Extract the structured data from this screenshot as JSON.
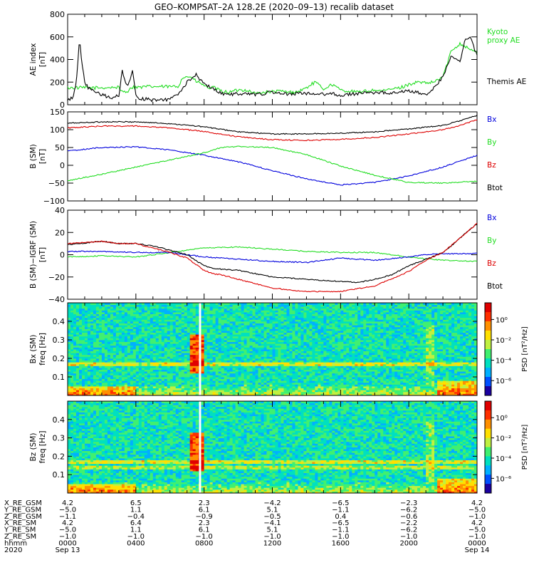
{
  "title": "GEO–KOMPSAT–2A 128.2E (2020–09–13) recalib dataset",
  "colors": {
    "black": "#000000",
    "green": "#22dd22",
    "blue": "#0000dd",
    "red": "#dd0000"
  },
  "chart_data": [
    {
      "type": "line",
      "ylabel_line1": "AE index",
      "ylabel_line2": "[nT]",
      "ylim": [
        0,
        800
      ],
      "yticks": [
        "0",
        "200",
        "400",
        "600",
        "800"
      ],
      "legend": [
        {
          "name": "Kyoto\nproxy AE",
          "color": "green"
        },
        {
          "name": "Themis AE",
          "color": "black"
        }
      ],
      "series": [
        {
          "name": "Kyoto proxy AE",
          "color": "green",
          "x": [
            0,
            1,
            2,
            3,
            3.01,
            3.6,
            3.61,
            4.5,
            4.51,
            6.5,
            6.7,
            7.2,
            7.5,
            7.9,
            8.2,
            8.6,
            9,
            9.5,
            10,
            10.5,
            11,
            11.5,
            12,
            12.5,
            13,
            13.5,
            14,
            14.5,
            15,
            15.5,
            16,
            16.5,
            17,
            17.5,
            18,
            18.5,
            19,
            19.5,
            20,
            20.5,
            21,
            21.5,
            22,
            22.5,
            23,
            23.5,
            24
          ],
          "values": [
            150,
            150,
            150,
            155,
            120,
            120,
            155,
            155,
            160,
            160,
            240,
            250,
            210,
            180,
            150,
            150,
            120,
            110,
            130,
            130,
            100,
            110,
            115,
            120,
            110,
            115,
            150,
            200,
            140,
            180,
            130,
            120,
            110,
            120,
            130,
            120,
            140,
            150,
            180,
            200,
            190,
            200,
            250,
            480,
            540,
            500,
            460
          ]
        },
        {
          "name": "Themis AE",
          "color": "black",
          "x": [
            0,
            0.3,
            0.5,
            0.7,
            0.8,
            0.9,
            1,
            1.2,
            1.5,
            2,
            2.5,
            3,
            3.2,
            3.5,
            3.8,
            4,
            4.3,
            4.6,
            5,
            5.5,
            6,
            6.5,
            7,
            7.5,
            8,
            8.5,
            9,
            9.5,
            10,
            10.5,
            11,
            11.5,
            12,
            12.5,
            13,
            13.5,
            14,
            14.5,
            15,
            15.5,
            16,
            16.5,
            17,
            17.5,
            18,
            18.5,
            19,
            19.5,
            20,
            20.5,
            21,
            21.5,
            22,
            22.5,
            23,
            23.3,
            23.6,
            24
          ],
          "values": [
            40,
            60,
            200,
            580,
            400,
            300,
            200,
            150,
            120,
            90,
            60,
            80,
            300,
            150,
            300,
            80,
            50,
            50,
            40,
            40,
            50,
            90,
            200,
            270,
            180,
            150,
            100,
            90,
            100,
            95,
            90,
            100,
            110,
            95,
            95,
            100,
            100,
            90,
            95,
            100,
            80,
            90,
            100,
            110,
            100,
            110,
            100,
            120,
            120,
            110,
            90,
            150,
            250,
            430,
            380,
            580,
            600,
            430
          ]
        }
      ]
    },
    {
      "type": "line",
      "ylabel_line1": "B (SM)",
      "ylabel_line2": "[nT]",
      "ylim": [
        -100,
        150
      ],
      "yticks": [
        "−100",
        "−50",
        "0",
        "50",
        "100",
        "150"
      ],
      "legend": [
        {
          "name": "Bx",
          "color": "blue"
        },
        {
          "name": "By",
          "color": "green"
        },
        {
          "name": "Bz",
          "color": "red"
        },
        {
          "name": "Btot",
          "color": "black"
        }
      ],
      "series": [
        {
          "name": "Btot",
          "color": "black",
          "x": [
            0,
            2,
            4,
            6,
            8,
            10,
            12,
            14,
            16,
            18,
            20,
            22,
            23,
            24
          ],
          "values": [
            118,
            122,
            122,
            117,
            108,
            94,
            88,
            88,
            90,
            94,
            102,
            112,
            125,
            140
          ]
        },
        {
          "name": "Bz",
          "color": "red",
          "x": [
            0,
            2,
            4,
            6,
            8,
            10,
            12,
            14,
            16,
            18,
            20,
            22,
            23,
            24
          ],
          "values": [
            105,
            110,
            110,
            105,
            95,
            80,
            72,
            70,
            73,
            78,
            88,
            100,
            112,
            128
          ]
        },
        {
          "name": "Bx",
          "color": "blue",
          "x": [
            0,
            2,
            4,
            6,
            8,
            10,
            12,
            14,
            16,
            18,
            20,
            22,
            24
          ],
          "values": [
            40,
            50,
            52,
            43,
            28,
            10,
            -15,
            -38,
            -55,
            -48,
            -30,
            -5,
            28
          ]
        },
        {
          "name": "By",
          "color": "green",
          "x": [
            0,
            2,
            4,
            6,
            8,
            9,
            10,
            12,
            14,
            16,
            18,
            20,
            22,
            24
          ],
          "values": [
            -43,
            -25,
            -5,
            15,
            35,
            50,
            53,
            50,
            30,
            -2,
            -28,
            -48,
            -50,
            -45
          ]
        }
      ]
    },
    {
      "type": "line",
      "ylabel_line1": "B (SM)−IGRF (SM)",
      "ylabel_line2": "[nT]",
      "ylim": [
        -40,
        40
      ],
      "yticks": [
        "−40",
        "−20",
        "0",
        "20",
        "40"
      ],
      "legend": [
        {
          "name": "Bx",
          "color": "blue"
        },
        {
          "name": "By",
          "color": "green"
        },
        {
          "name": "Bz",
          "color": "red"
        },
        {
          "name": "Btot",
          "color": "black"
        }
      ],
      "series": [
        {
          "name": "By",
          "color": "green",
          "x": [
            0,
            2,
            4,
            6,
            8,
            10,
            12,
            14,
            16,
            18,
            20,
            22,
            24
          ],
          "values": [
            -2,
            -1,
            -2,
            2,
            6,
            7,
            5,
            3,
            2,
            2,
            -2,
            -5,
            -6
          ]
        },
        {
          "name": "Bx",
          "color": "blue",
          "x": [
            0,
            2,
            4,
            6,
            8,
            10,
            12,
            14,
            16,
            18,
            20,
            21,
            22,
            24
          ],
          "values": [
            3,
            3,
            2,
            2,
            -2,
            -4,
            -6,
            -7,
            -3,
            -5,
            -2,
            0,
            1,
            1
          ]
        },
        {
          "name": "Btot",
          "color": "black",
          "x": [
            0,
            2,
            3,
            4,
            5,
            6,
            7,
            8,
            8.5,
            9,
            10,
            12,
            14,
            16,
            17,
            18,
            19,
            20,
            21,
            22,
            22.5,
            23,
            24
          ],
          "values": [
            9,
            12,
            10,
            10,
            8,
            4,
            0,
            -10,
            -12,
            -13,
            -14,
            -20,
            -22,
            -24,
            -25,
            -22,
            -18,
            -10,
            -4,
            2,
            8,
            15,
            28
          ]
        },
        {
          "name": "Bz",
          "color": "red",
          "x": [
            0,
            2,
            3,
            4,
            5,
            6,
            7,
            8,
            8.5,
            9,
            10,
            12,
            14,
            16,
            18,
            20,
            21,
            22,
            23,
            24
          ],
          "values": [
            10,
            12,
            10,
            10,
            6,
            2,
            -3,
            -14,
            -17,
            -18,
            -22,
            -30,
            -33,
            -33,
            -28,
            -15,
            -5,
            2,
            15,
            28
          ]
        }
      ]
    },
    {
      "type": "heatmap",
      "ylabel_line1": "Bx (SM)",
      "ylabel_line2": "freq [Hz]",
      "ylim": [
        0,
        0.5
      ],
      "yticks": [
        "0.1",
        "0.2",
        "0.3",
        "0.4"
      ],
      "colorbar_label": "PSD [nT²/Hz]",
      "colorbar_ticks": [
        "10⁰",
        "10⁻²",
        "10⁻⁴",
        "10⁻⁶"
      ],
      "burst_hour": 7.5,
      "gap_hour": 7.7
    },
    {
      "type": "heatmap",
      "ylabel_line1": "Bz (SM)",
      "ylabel_line2": "freq [Hz]",
      "ylim": [
        0,
        0.5
      ],
      "yticks": [
        "0.1",
        "0.2",
        "0.3",
        "0.4"
      ],
      "colorbar_label": "PSD [nT²/Hz]",
      "colorbar_ticks": [
        "10⁰",
        "10⁻²",
        "10⁻⁴",
        "10⁻⁶"
      ],
      "burst_hour": 7.5,
      "gap_hour": 7.7
    }
  ],
  "ephemeris": {
    "row_labels": [
      "X_RE_GSM",
      "Y_RE_GSM",
      "Z_RE_GSM",
      "X_RE_SM",
      "Y_RE_SM",
      "Z_RE_SM",
      "hhmm",
      "2020"
    ],
    "columns": [
      [
        "4.2",
        "−5.0",
        "−1.1",
        "4.2",
        "−5.0",
        "−1.0",
        "0000",
        "Sep 13"
      ],
      [
        "6.5",
        "1.1",
        "−0.4",
        "6.4",
        "1.1",
        "−1.0",
        "0400",
        ""
      ],
      [
        "2.3",
        "6.1",
        "−0.9",
        "2.3",
        "6.1",
        "−1.0",
        "0800",
        ""
      ],
      [
        "−4.2",
        "5.1",
        "−0.5",
        "−4.1",
        "5.1",
        "−1.0",
        "1200",
        ""
      ],
      [
        "−6.5",
        "−1.1",
        "0.4",
        "−6.5",
        "−1.1",
        "−1.0",
        "1600",
        ""
      ],
      [
        "−2.3",
        "−6.2",
        "−0.6",
        "−2.2",
        "−6.2",
        "−1.0",
        "2000",
        ""
      ],
      [
        "4.2",
        "−5.0",
        "−1.0",
        "4.2",
        "−5.0",
        "−1.0",
        "0000",
        "Sep 14"
      ]
    ]
  }
}
